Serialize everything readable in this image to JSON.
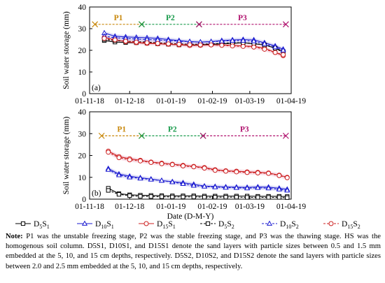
{
  "chart_data": [
    {
      "type": "line",
      "panel_label": "(a)",
      "ylabel": "Soil water storage (mm)",
      "xlabel": "",
      "ylim": [
        0,
        40
      ],
      "yticks": [
        0,
        10,
        20,
        30,
        40
      ],
      "xlim": [
        "2018-11-01",
        "2019-04-01"
      ],
      "xticks": [
        "01-11-18",
        "01-12-18",
        "01-01-19",
        "01-02-19",
        "01-03-19",
        "01-04-19"
      ],
      "stages": [
        {
          "label": "P1",
          "start": "2018-11-05",
          "end": "2018-12-10",
          "color": "#c8870a"
        },
        {
          "label": "P2",
          "start": "2018-12-10",
          "end": "2019-01-22",
          "color": "#179a4a"
        },
        {
          "label": "P3",
          "start": "2019-01-22",
          "end": "2019-03-28",
          "color": "#b0126e"
        }
      ],
      "stage_y": 32,
      "x": [
        "2018-11-12",
        "2018-11-20",
        "2018-11-28",
        "2018-12-06",
        "2018-12-14",
        "2018-12-22",
        "2018-12-30",
        "2019-01-07",
        "2019-01-15",
        "2019-01-23",
        "2019-01-31",
        "2019-02-08",
        "2019-02-16",
        "2019-02-24",
        "2019-03-04",
        "2019-03-12",
        "2019-03-20",
        "2019-03-26"
      ],
      "series": [
        {
          "name": "D5S1",
          "values": [
            24.5,
            23.8,
            23.6,
            23.5,
            23.3,
            23.0,
            22.8,
            22.5,
            22.5,
            22.5,
            22.8,
            23.0,
            23.2,
            23.5,
            23.0,
            22.5,
            21.0,
            19.5
          ]
        },
        {
          "name": "D10S1",
          "values": [
            28.0,
            26.5,
            26.2,
            26.0,
            25.8,
            25.5,
            25.0,
            24.5,
            24.0,
            23.8,
            24.0,
            24.5,
            24.8,
            25.0,
            24.8,
            23.5,
            22.0,
            20.5
          ]
        },
        {
          "name": "D15S1",
          "values": [
            26.0,
            24.8,
            24.0,
            23.5,
            23.2,
            23.0,
            22.8,
            22.5,
            22.2,
            22.3,
            22.5,
            22.5,
            22.3,
            22.0,
            21.8,
            21.0,
            19.0,
            17.5
          ]
        },
        {
          "name": "D5S2",
          "values": [
            25.0,
            24.5,
            24.2,
            24.0,
            23.8,
            23.5,
            23.2,
            23.0,
            22.8,
            22.8,
            23.0,
            23.2,
            23.5,
            23.5,
            23.2,
            22.5,
            21.0,
            19.0
          ]
        },
        {
          "name": "D10S2",
          "values": [
            26.5,
            25.8,
            25.5,
            25.2,
            25.0,
            24.8,
            24.5,
            24.2,
            24.0,
            23.8,
            24.0,
            24.2,
            24.5,
            24.5,
            24.2,
            23.0,
            21.5,
            20.0
          ]
        },
        {
          "name": "D15S2",
          "values": [
            25.5,
            24.8,
            24.2,
            23.8,
            23.5,
            23.2,
            23.0,
            22.8,
            22.6,
            22.5,
            22.5,
            22.3,
            22.0,
            21.8,
            21.5,
            20.5,
            19.0,
            18.0
          ]
        }
      ]
    },
    {
      "type": "line",
      "panel_label": "(b)",
      "ylabel": "Soil water storage (mm)",
      "xlabel": "Date (D-M-Y)",
      "ylim": [
        0,
        40
      ],
      "yticks": [
        0,
        10,
        20,
        30,
        40
      ],
      "xlim": [
        "2018-11-01",
        "2019-04-01"
      ],
      "xticks": [
        "01-11-18",
        "01-12-18",
        "01-01-19",
        "01-02-19",
        "01-03-19",
        "01-04-19"
      ],
      "stages": [
        {
          "label": "P1",
          "start": "2018-11-10",
          "end": "2018-12-10",
          "color": "#c8870a"
        },
        {
          "label": "P2",
          "start": "2018-12-10",
          "end": "2019-01-25",
          "color": "#179a4a"
        },
        {
          "label": "P3",
          "start": "2019-01-25",
          "end": "2019-03-28",
          "color": "#b0126e"
        }
      ],
      "stage_y": 29,
      "x": [
        "2018-11-15",
        "2018-11-23",
        "2018-12-01",
        "2018-12-09",
        "2018-12-17",
        "2018-12-25",
        "2019-01-02",
        "2019-01-10",
        "2019-01-18",
        "2019-01-26",
        "2019-02-03",
        "2019-02-11",
        "2019-02-19",
        "2019-02-27",
        "2019-03-07",
        "2019-03-15",
        "2019-03-23",
        "2019-03-29"
      ],
      "series": [
        {
          "name": "D5S1",
          "values": [
            5.0,
            2.5,
            2.0,
            1.8,
            1.7,
            1.6,
            1.5,
            1.5,
            1.5,
            1.4,
            1.4,
            1.4,
            1.4,
            1.4,
            1.3,
            1.3,
            1.3,
            1.2
          ]
        },
        {
          "name": "D10S1",
          "values": [
            14.0,
            11.5,
            10.5,
            9.8,
            9.2,
            8.5,
            8.0,
            7.5,
            6.8,
            6.0,
            5.8,
            5.6,
            5.5,
            5.4,
            5.6,
            5.5,
            5.0,
            4.5
          ]
        },
        {
          "name": "D15S1",
          "values": [
            22.0,
            19.5,
            18.5,
            17.8,
            17.0,
            16.5,
            16.0,
            15.5,
            15.0,
            14.5,
            13.5,
            13.0,
            12.8,
            12.5,
            12.3,
            12.0,
            11.0,
            10.0
          ]
        },
        {
          "name": "D5S2",
          "values": [
            4.0,
            2.2,
            1.6,
            1.3,
            1.2,
            1.1,
            1.0,
            1.0,
            1.0,
            0.9,
            0.9,
            0.9,
            0.9,
            0.8,
            0.8,
            0.8,
            0.8,
            0.7
          ]
        },
        {
          "name": "D10S2",
          "values": [
            13.5,
            11.0,
            10.0,
            9.5,
            9.0,
            8.5,
            7.8,
            7.0,
            6.2,
            5.8,
            5.5,
            5.3,
            5.2,
            5.0,
            5.2,
            5.0,
            4.5,
            4.0
          ]
        },
        {
          "name": "D15S2",
          "values": [
            21.5,
            19.0,
            18.0,
            17.5,
            16.8,
            16.2,
            15.8,
            15.2,
            14.8,
            14.2,
            13.2,
            12.8,
            12.5,
            12.2,
            12.0,
            11.8,
            10.8,
            9.8
          ]
        }
      ]
    }
  ],
  "legend": {
    "items": [
      {
        "base": "D",
        "sub1": "5",
        "mid": "S",
        "sub2": "1",
        "marker": "square",
        "color": "#000000",
        "dashed": false
      },
      {
        "base": "D",
        "sub1": "10",
        "mid": "S",
        "sub2": "1",
        "marker": "triangle",
        "color": "#1a1ad0",
        "dashed": false
      },
      {
        "base": "D",
        "sub1": "15",
        "mid": "S",
        "sub2": "1",
        "marker": "circle",
        "color": "#cc2020",
        "dashed": false
      },
      {
        "base": "D",
        "sub1": "5",
        "mid": "S",
        "sub2": "2",
        "marker": "square",
        "color": "#000000",
        "dashed": true
      },
      {
        "base": "D",
        "sub1": "10",
        "mid": "S",
        "sub2": "2",
        "marker": "triangle",
        "color": "#1a1ad0",
        "dashed": true
      },
      {
        "base": "D",
        "sub1": "15",
        "mid": "S",
        "sub2": "2",
        "marker": "circle",
        "color": "#cc2020",
        "dashed": true
      }
    ]
  },
  "colors": {
    "D5S1": "#000000",
    "D10S1": "#1a1ad0",
    "D15S1": "#cc2020",
    "D5S2": "#000000",
    "D10S2": "#1a1ad0",
    "D15S2": "#cc2020",
    "band_D15": "#f2c4d6",
    "band_D10": "#c8c8f0"
  },
  "note": {
    "label": "Note:",
    "text": " P1 was the unstable freezing stage, P2 was the stable freezing stage, and P3 was the thawing stage. HS was the homogenous soil column. D5S1, D10S1, and D15S1 denote the sand layers with particle sizes between 0.5 and 1.5 mm embedded at the 5, 10, and 15 cm depths, respectively. D5S2, D10S2, and D15S2 denote the sand layers with particle sizes between 2.0 and 2.5 mm embedded at the 5, 10, and 15 cm depths, respectively."
  }
}
